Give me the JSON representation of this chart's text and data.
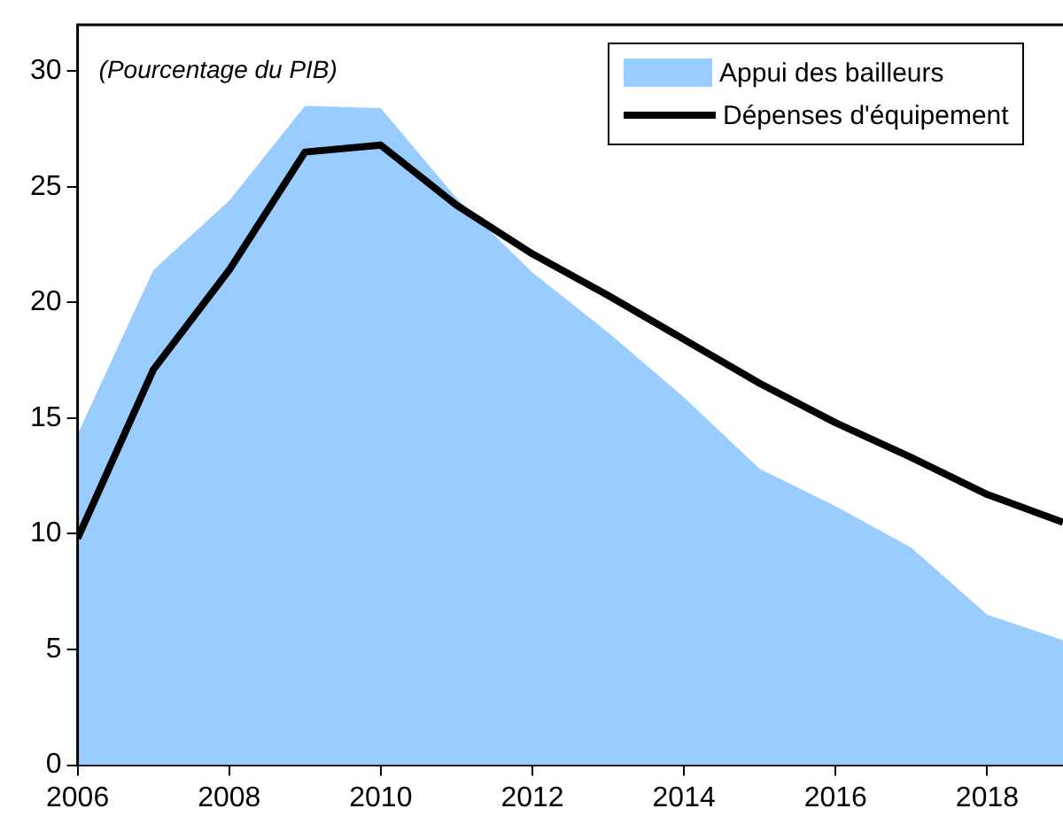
{
  "chart_data": {
    "type": "area",
    "x": [
      2006,
      2007,
      2008,
      2009,
      2010,
      2011,
      2012,
      2013,
      2014,
      2015,
      2016,
      2017,
      2018,
      2019
    ],
    "series": [
      {
        "name": "Appui des bailleurs",
        "color": "#99ccff",
        "values": [
          14.3,
          21.4,
          24.4,
          28.5,
          28.4,
          24.5,
          21.3,
          18.7,
          15.9,
          12.8,
          11.2,
          9.4,
          6.5,
          5.4
        ]
      },
      {
        "name": "Dépenses d'équipement",
        "type": "line",
        "color": "#000000",
        "values": [
          9.8,
          17.1,
          21.4,
          26.5,
          26.8,
          24.2,
          22.1,
          20.3,
          18.4,
          16.5,
          14.8,
          13.3,
          11.7,
          10.5
        ]
      }
    ],
    "annotations": [
      "(Pourcentage du PIB)"
    ],
    "xlim": [
      2006,
      2019
    ],
    "xticks": [
      2006,
      2008,
      2010,
      2012,
      2014,
      2016,
      2018
    ],
    "ylim": [
      0,
      32
    ],
    "yticks": [
      0,
      5,
      10,
      15,
      20,
      25,
      30
    ],
    "grid": false,
    "legend": "top right",
    "marker": "none"
  }
}
